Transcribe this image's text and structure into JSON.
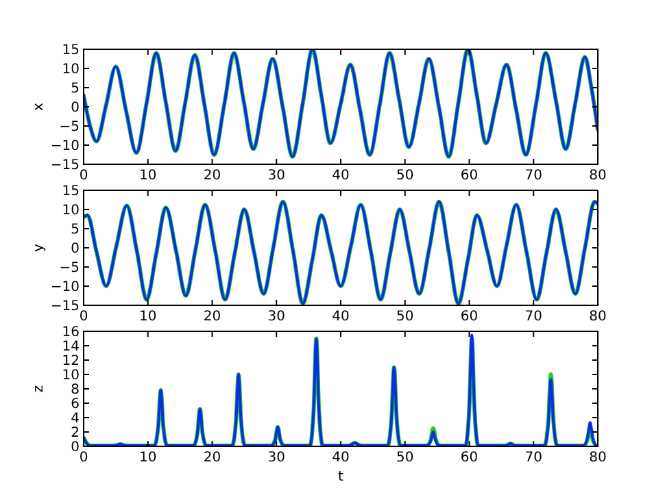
{
  "chart_data": [
    {
      "type": "line",
      "ylabel": "x",
      "xlim": [
        0,
        80
      ],
      "xticks": [
        0,
        10,
        20,
        30,
        40,
        50,
        60,
        70,
        80
      ],
      "ylim": [
        -15,
        15
      ],
      "yticks": [
        -15,
        -10,
        -5,
        0,
        5,
        10,
        15
      ],
      "grid": false,
      "x": [
        0,
        1,
        2,
        3.5,
        5,
        6.6,
        8.2,
        9.8,
        11.3,
        12.8,
        14.3,
        15.8,
        17.3,
        18.8,
        20.3,
        21.9,
        23.4,
        24.9,
        26.4,
        27.9,
        29.4,
        31,
        32.5,
        34.1,
        35.6,
        37,
        38.4,
        40,
        41.5,
        43,
        44.5,
        46.1,
        47.6,
        49.1,
        50.6,
        52.2,
        53.7,
        55.3,
        56.8,
        58.3,
        59.8,
        61.2,
        62.6,
        64.2,
        65.8,
        67.3,
        68.8,
        70.4,
        71.9,
        73.5,
        75,
        76.5,
        78,
        79,
        80
      ],
      "series": [
        {
          "color": "#22cc22",
          "values": [
            3,
            -5,
            -9,
            0.5,
            10.5,
            -1,
            -12,
            1,
            14,
            1,
            -11.5,
            1,
            13.5,
            0.5,
            -12.5,
            0.8,
            14,
            1.5,
            -11,
            0.8,
            12.5,
            -0.3,
            -13,
            1,
            15,
            2.8,
            -9.5,
            0.8,
            11,
            -0.8,
            -12.5,
            0.8,
            14,
            1.8,
            -10.5,
            1,
            12.5,
            -0.3,
            -13,
            1,
            15,
            2.8,
            -9.5,
            0.8,
            11,
            -0.8,
            -12.5,
            0.8,
            14,
            1.5,
            -11,
            1,
            13,
            5,
            -6
          ]
        },
        {
          "color": "#0a2ee6",
          "values": [
            3,
            -5,
            -9,
            0.5,
            10.5,
            -1,
            -12,
            1,
            14,
            1,
            -11.5,
            1,
            13.5,
            0.5,
            -12.5,
            0.8,
            14,
            1.5,
            -11,
            0.8,
            12.5,
            -0.3,
            -13,
            1,
            15,
            2.8,
            -9.5,
            0.8,
            11,
            -0.8,
            -12.5,
            0.8,
            14,
            1.8,
            -10.5,
            1,
            12.5,
            -0.3,
            -13,
            1,
            15,
            2.8,
            -9.5,
            0.8,
            11,
            -0.8,
            -12.5,
            0.8,
            14,
            1.5,
            -11,
            1,
            13,
            5,
            -6
          ]
        }
      ]
    },
    {
      "type": "line",
      "ylabel": "y",
      "xlim": [
        0,
        80
      ],
      "xticks": [
        0,
        10,
        20,
        30,
        40,
        50,
        60,
        70,
        80
      ],
      "ylim": [
        -15,
        15
      ],
      "yticks": [
        -15,
        -10,
        -5,
        0,
        5,
        10,
        15
      ],
      "grid": false,
      "x": [
        0,
        0.6,
        2,
        3.5,
        5.1,
        6.7,
        8.3,
        9.8,
        11.3,
        12.8,
        14.4,
        15.9,
        17.4,
        18.9,
        20.5,
        22,
        23.5,
        25,
        26.5,
        28,
        29.5,
        31,
        32.6,
        34.1,
        35.6,
        37,
        38.5,
        40,
        41.6,
        43.1,
        44.7,
        46.2,
        47.7,
        49.2,
        50.7,
        52.2,
        53.8,
        55.3,
        56.8,
        58.3,
        59.8,
        61.2,
        62.8,
        64.3,
        65.8,
        67.3,
        68.9,
        70.5,
        72,
        73.5,
        75,
        76.5,
        78,
        79.5,
        80
      ],
      "series": [
        {
          "color": "#22cc22",
          "values": [
            8,
            8.5,
            -1,
            -10,
            0.5,
            11,
            -1,
            -13.5,
            -1.5,
            10.5,
            -1,
            -12.5,
            -0.5,
            11.2,
            -1,
            -13.5,
            -1.5,
            10,
            -1,
            -12,
            0,
            12,
            -1,
            -14.5,
            -3,
            8.5,
            -0.8,
            -10,
            0.6,
            11.2,
            -1,
            -13.5,
            -1.5,
            10,
            -1,
            -12,
            0,
            12,
            -1,
            -14.5,
            -3,
            8.5,
            -0.8,
            -10,
            0.6,
            11.2,
            -1,
            -13.5,
            -1.5,
            10,
            -1,
            -12,
            0,
            12,
            11.5
          ]
        },
        {
          "color": "#0a2ee6",
          "values": [
            8,
            8.5,
            -1,
            -10,
            0.5,
            11,
            -1,
            -13.5,
            -1.5,
            10.5,
            -1,
            -12.5,
            -0.5,
            11.2,
            -1,
            -13.5,
            -1.5,
            10,
            -1,
            -12,
            0,
            12,
            -1,
            -14.5,
            -3,
            8.5,
            -0.8,
            -10,
            0.6,
            11.2,
            -1,
            -13.5,
            -1.5,
            10,
            -1,
            -12,
            0,
            12,
            -1,
            -14.5,
            -3,
            8.5,
            -0.8,
            -10,
            0.6,
            11.2,
            -1,
            -13.5,
            -1.5,
            10,
            -1,
            -12,
            0,
            12,
            11.5
          ]
        }
      ]
    },
    {
      "type": "line",
      "ylabel": "z",
      "xlabel": "t",
      "xlim": [
        0,
        80
      ],
      "xticks": [
        0,
        10,
        20,
        30,
        40,
        50,
        60,
        70,
        80
      ],
      "ylim": [
        0,
        16
      ],
      "yticks": [
        0,
        2,
        4,
        6,
        8,
        10,
        12,
        14,
        16
      ],
      "grid": false,
      "x": [
        0,
        0.5,
        1,
        1.5,
        4.7,
        5.3,
        5.7,
        6.1,
        6.7,
        11,
        11.6,
        12,
        12.4,
        13,
        17.1,
        17.7,
        18.1,
        18.5,
        19.1,
        23.1,
        23.7,
        24.1,
        24.5,
        25.1,
        29.2,
        29.8,
        30.2,
        30.6,
        31.2,
        35.2,
        35.8,
        36.2,
        36.6,
        37.2,
        41.2,
        41.8,
        42.2,
        42.6,
        43.2,
        47.3,
        47.9,
        48.3,
        48.7,
        49.3,
        53.4,
        54,
        54.4,
        54.8,
        55.4,
        59.4,
        60,
        60.4,
        60.8,
        61.4,
        65.4,
        66,
        66.4,
        66.8,
        67.4,
        71.7,
        72.3,
        72.7,
        73.1,
        73.7,
        77.8,
        78.4,
        78.8,
        79.2,
        79.8,
        80
      ],
      "series": [
        {
          "color": "#22cc22",
          "values": [
            1.2,
            0.4,
            0.1,
            0.1,
            0.1,
            0.2,
            0.3,
            0.2,
            0.1,
            0.1,
            2.7,
            7.8,
            2.7,
            0.1,
            0.1,
            1.8,
            5.2,
            1.8,
            0.1,
            0.1,
            3.5,
            10,
            3.5,
            0.1,
            0.1,
            0.9,
            2.7,
            0.9,
            0.1,
            0.1,
            5.3,
            15,
            5.3,
            0.1,
            0.1,
            0.3,
            0.5,
            0.3,
            0.1,
            0.1,
            3.9,
            11,
            3.9,
            0.1,
            0.1,
            0.9,
            2.5,
            0.9,
            0.1,
            0.1,
            5.3,
            15,
            5.3,
            0.1,
            0.1,
            0.2,
            0.4,
            0.2,
            0.1,
            0.1,
            3.5,
            10,
            3.5,
            0.1,
            0.1,
            1,
            2.8,
            1,
            0.1,
            0.1
          ]
        },
        {
          "color": "#0a2ee6",
          "values": [
            1.2,
            0.4,
            0.1,
            0.1,
            0.1,
            0.2,
            0.3,
            0.2,
            0.1,
            0.1,
            2.7,
            7.8,
            2.7,
            0.1,
            0.1,
            1.8,
            5.2,
            1.8,
            0.1,
            0.1,
            3.5,
            10,
            3.5,
            0.1,
            0.1,
            0.9,
            2.7,
            0.9,
            0.1,
            0.1,
            5.3,
            15,
            5.3,
            0.1,
            0.1,
            0.3,
            0.5,
            0.3,
            0.1,
            0.1,
            3.9,
            11,
            3.9,
            0.1,
            0.1,
            0.7,
            2,
            0.7,
            0.1,
            0.1,
            5.4,
            15.5,
            5.4,
            0.1,
            0.1,
            0.2,
            0.4,
            0.2,
            0.1,
            0.1,
            3.3,
            9.3,
            3.3,
            0.1,
            0.1,
            1.2,
            3.3,
            1.2,
            0.1,
            0.1
          ]
        }
      ]
    }
  ]
}
